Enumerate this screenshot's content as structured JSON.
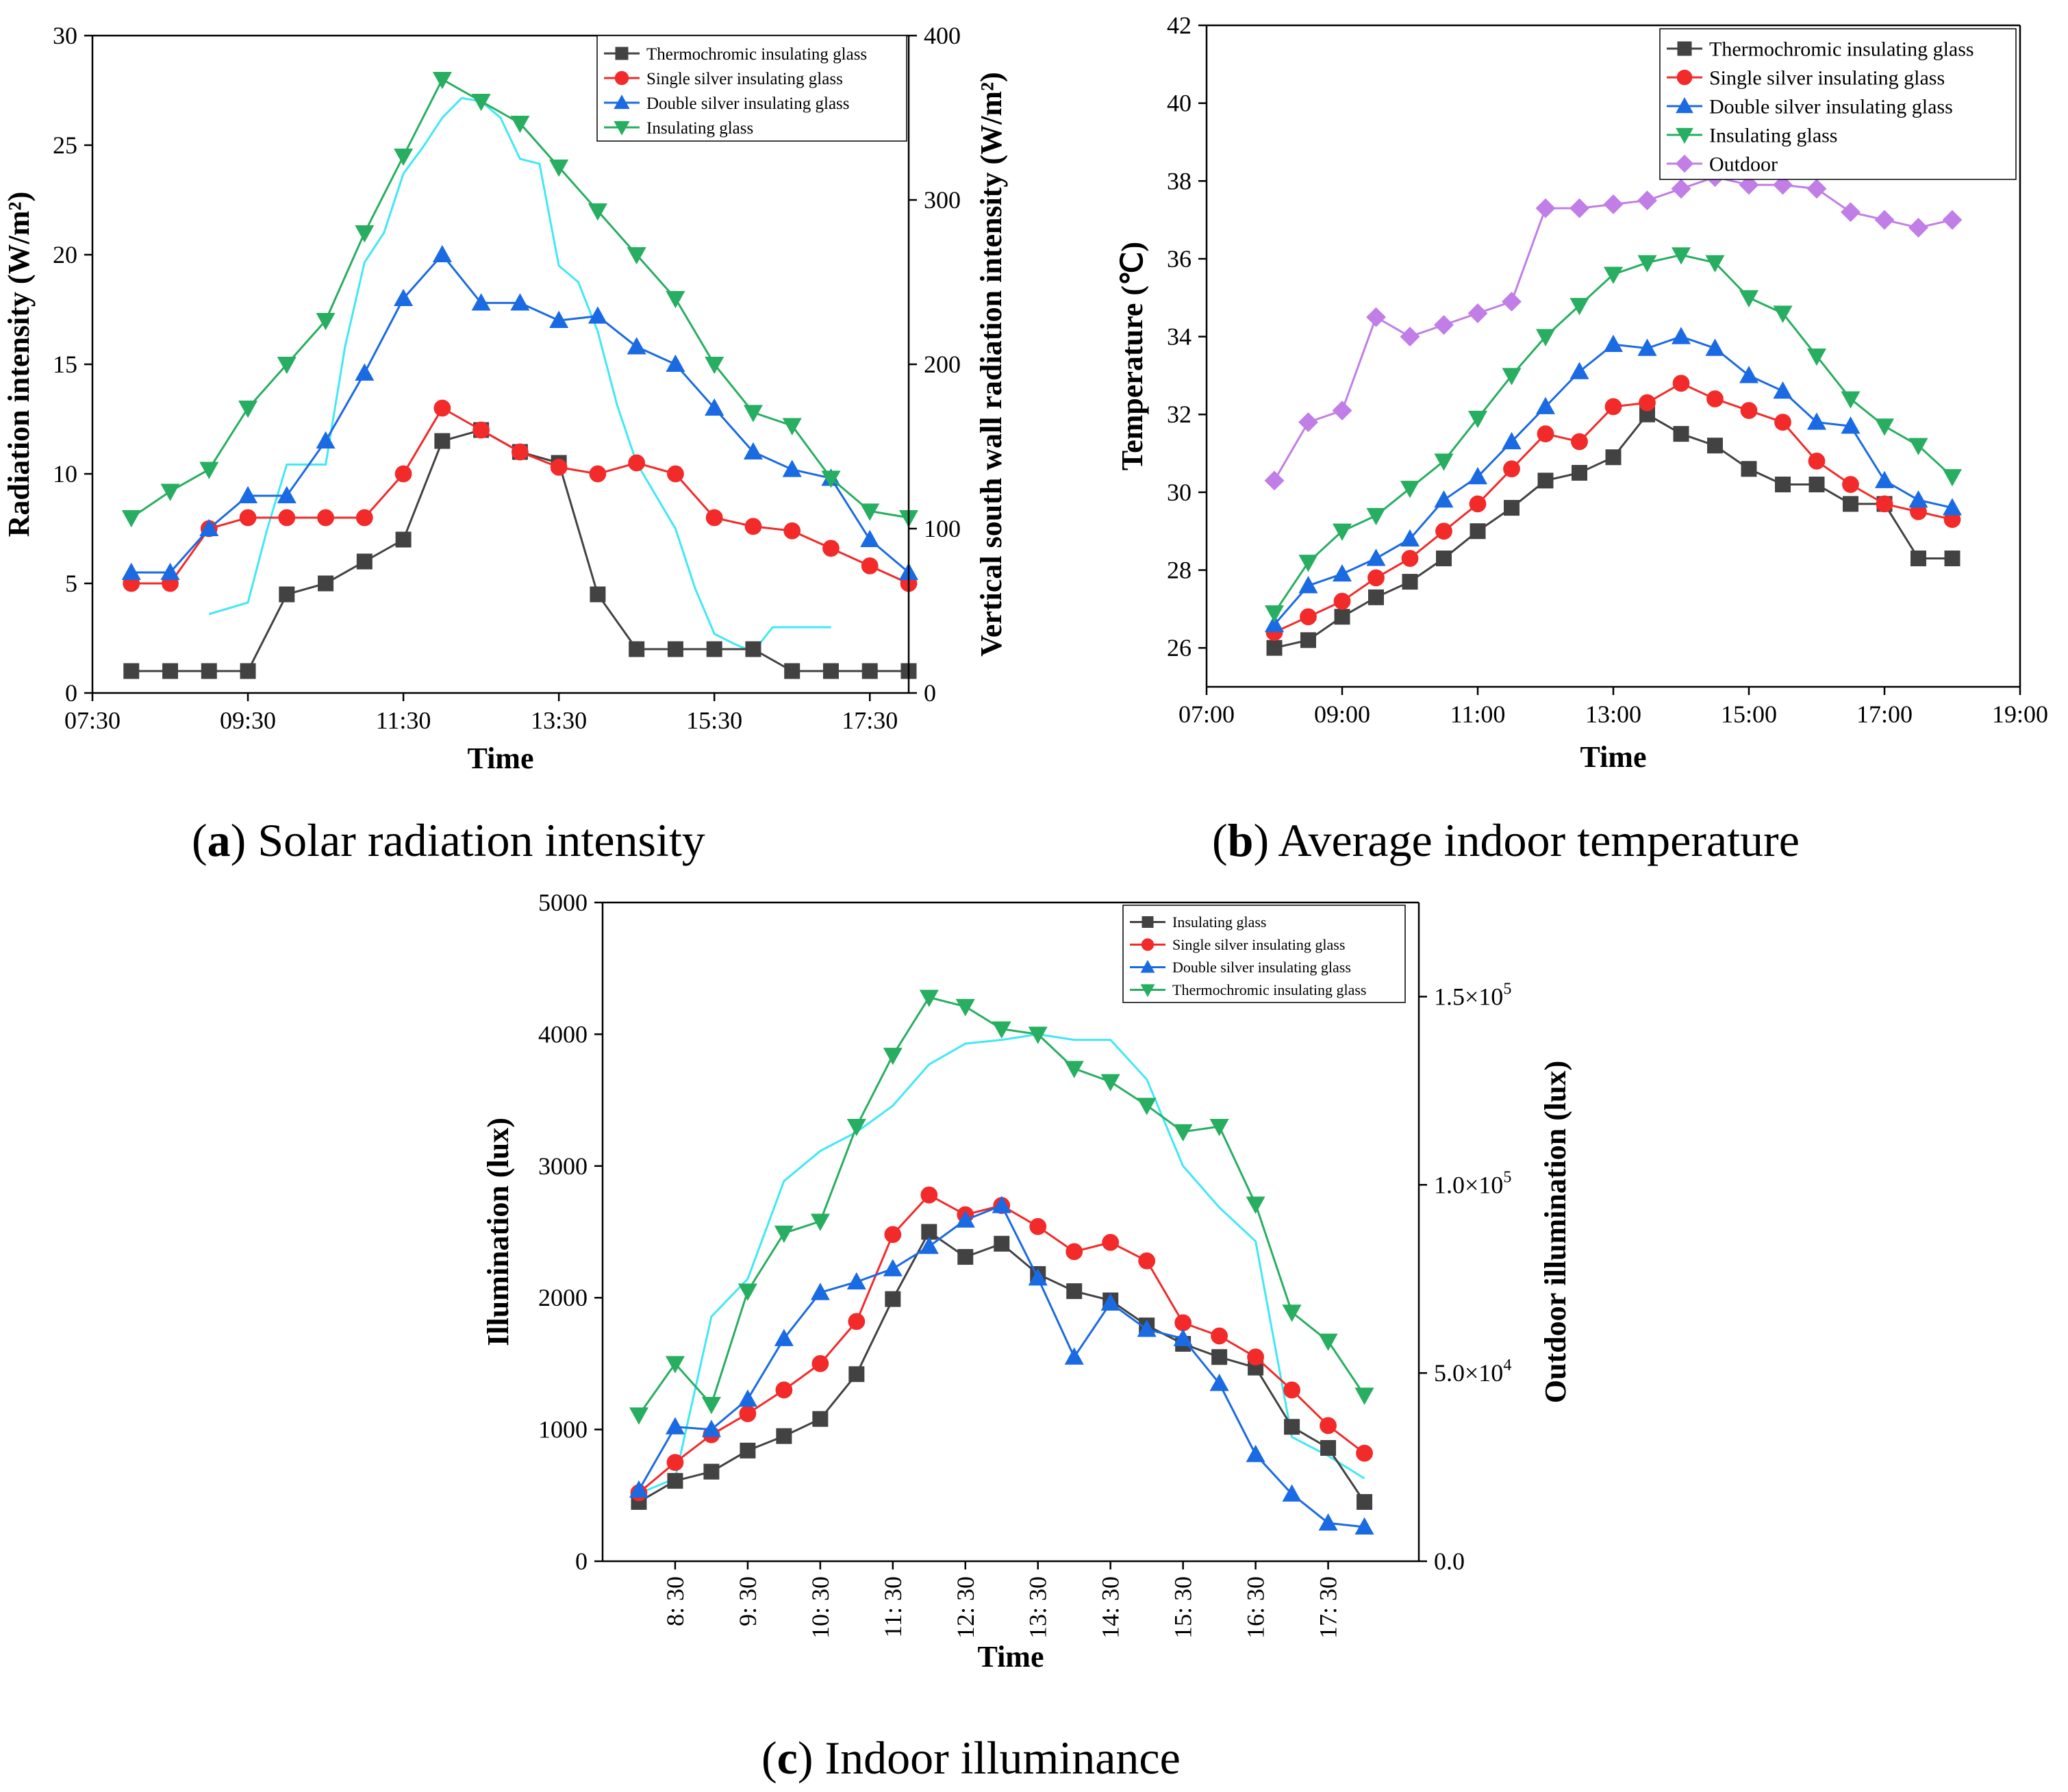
{
  "figure_captions": {
    "a": {
      "label": "a",
      "text": " Solar radiation intensity"
    },
    "b": {
      "label": "b",
      "text": " Average indoor temperature"
    },
    "c": {
      "label": "c",
      "text": " Indoor illuminance"
    }
  },
  "colors": {
    "thermochromic": "#424242",
    "single_silver": "#f22a2a",
    "double_silver": "#1a6ae3",
    "insulating": "#27ae60",
    "outdoor_marker": "#c07ee6",
    "outdoor_line": "#40e8f5",
    "axis": "#000000"
  },
  "chart_data": [
    {
      "id": "a",
      "type": "line",
      "xlabel": "Time",
      "ylabel": "Radiation intensity (W/m²)",
      "ylabel_right": "Vertical south wall radiation intensity (W/m²)",
      "xlim": [
        7.5,
        18.0
      ],
      "ylim": [
        0,
        30
      ],
      "ylim_right": [
        0,
        400
      ],
      "x_ticks": [
        7.5,
        9.5,
        11.5,
        13.5,
        15.5,
        17.5
      ],
      "x_tick_labels": [
        "07:30",
        "09:30",
        "11:30",
        "13:30",
        "15:30",
        "17:30"
      ],
      "y_ticks": [
        0,
        5,
        10,
        15,
        20,
        25,
        30
      ],
      "y_tick_labels": [
        "0",
        "5",
        "10",
        "15",
        "20",
        "25",
        "30"
      ],
      "y_ticks_right": [
        0,
        100,
        200,
        300,
        400
      ],
      "y_tick_labels_right": [
        "0",
        "100",
        "200",
        "300",
        "400"
      ],
      "legend_position": "top-right",
      "x": [
        8.0,
        8.5,
        9.0,
        9.5,
        10.0,
        10.5,
        11.0,
        11.5,
        12.0,
        12.5,
        13.0,
        13.5,
        14.0,
        14.5,
        15.0,
        15.5,
        16.0,
        16.5,
        17.0,
        17.5,
        18.0
      ],
      "series": [
        {
          "name": "Thermochromic insulating glass",
          "marker": "square",
          "color_key": "thermochromic",
          "values": [
            1,
            1,
            1,
            1,
            4.5,
            5,
            6,
            7,
            11.5,
            12,
            11,
            10.5,
            4.5,
            2,
            2,
            2,
            2,
            1,
            1,
            1,
            1
          ]
        },
        {
          "name": "Single silver insulating glass",
          "marker": "circle",
          "color_key": "single_silver",
          "values": [
            5,
            5,
            7.5,
            8,
            8,
            8,
            8,
            10,
            13,
            12,
            11,
            10.3,
            10,
            10.5,
            10,
            8,
            7.6,
            7.4,
            6.6,
            5.8,
            5
          ]
        },
        {
          "name": "Double silver insulating glass",
          "marker": "triangle-up",
          "color_key": "double_silver",
          "values": [
            5.5,
            5.5,
            7.5,
            9,
            9,
            11.5,
            14.6,
            18,
            20,
            17.8,
            17.8,
            17,
            17.2,
            15.8,
            15,
            13,
            11,
            10.2,
            9.8,
            7,
            5.5
          ]
        },
        {
          "name": "Insulating glass",
          "marker": "triangle-down",
          "color_key": "insulating",
          "values": [
            8,
            9.2,
            10.2,
            13,
            15,
            17,
            21,
            24.5,
            28,
            27,
            26,
            24,
            22,
            20,
            18,
            15,
            12.8,
            12.2,
            9.8,
            8.3,
            8
          ]
        }
      ],
      "secondary_series": {
        "name": "Vertical south wall radiation intensity",
        "axis": "right",
        "color_key": "outdoor_line",
        "x": [
          9.0,
          9.5,
          9.75,
          10.0,
          10.25,
          10.5,
          10.75,
          11.0,
          11.25,
          11.5,
          11.75,
          12.0,
          12.25,
          12.5,
          12.75,
          13.0,
          13.25,
          13.5,
          13.75,
          14.0,
          14.25,
          14.5,
          14.75,
          15.0,
          15.25,
          15.5,
          15.75,
          16.0,
          16.25,
          16.5,
          16.75,
          17.0
        ],
        "values": [
          48,
          55,
          100,
          139,
          139,
          139,
          211,
          262,
          280,
          316,
          332,
          350,
          362,
          360,
          350,
          325,
          322,
          260,
          250,
          220,
          175,
          140,
          120,
          100,
          64,
          36,
          30,
          25,
          40,
          40,
          40,
          40
        ]
      }
    },
    {
      "id": "b",
      "type": "line",
      "xlabel": "Time",
      "ylabel": "Temperature (℃)",
      "xlim": [
        7.0,
        19.0
      ],
      "ylim": [
        25,
        42
      ],
      "x_ticks": [
        7,
        9,
        11,
        13,
        15,
        17,
        19
      ],
      "x_tick_labels": [
        "07:00",
        "09:00",
        "11:00",
        "13:00",
        "15:00",
        "17:00",
        "19:00"
      ],
      "y_ticks": [
        26,
        28,
        30,
        32,
        34,
        36,
        38,
        40,
        42
      ],
      "y_tick_labels": [
        "26",
        "28",
        "30",
        "32",
        "34",
        "36",
        "38",
        "40",
        "42"
      ],
      "legend_position": "top-right",
      "x": [
        8.0,
        8.5,
        9.0,
        9.5,
        10.0,
        10.5,
        11.0,
        11.5,
        12.0,
        12.5,
        13.0,
        13.5,
        14.0,
        14.5,
        15.0,
        15.5,
        16.0,
        16.5,
        17.0,
        17.5,
        18.0
      ],
      "series": [
        {
          "name": "Thermochromic insulating glass",
          "marker": "square",
          "color_key": "thermochromic",
          "values": [
            26,
            26.2,
            26.8,
            27.3,
            27.7,
            28.3,
            29,
            29.6,
            30.3,
            30.5,
            30.9,
            32,
            31.5,
            31.2,
            30.6,
            30.2,
            30.2,
            29.7,
            29.7,
            28.3,
            28.3
          ]
        },
        {
          "name": "Single silver insulating glass",
          "marker": "circle",
          "color_key": "single_silver",
          "values": [
            26.4,
            26.8,
            27.2,
            27.8,
            28.3,
            29,
            29.7,
            30.6,
            31.5,
            31.3,
            32.2,
            32.3,
            32.8,
            32.4,
            32.1,
            31.8,
            30.8,
            30.2,
            29.7,
            29.5,
            29.3
          ]
        },
        {
          "name": "Double silver insulating glass",
          "marker": "triangle-up",
          "color_key": "double_silver",
          "values": [
            26.6,
            27.6,
            27.9,
            28.3,
            28.8,
            29.8,
            30.4,
            31.3,
            32.2,
            33.1,
            33.8,
            33.7,
            34,
            33.7,
            33,
            32.6,
            31.8,
            31.7,
            30.3,
            29.8,
            29.6
          ]
        },
        {
          "name": "Insulating glass",
          "marker": "triangle-down",
          "color_key": "insulating",
          "values": [
            26.9,
            28.2,
            29,
            29.4,
            30.1,
            30.8,
            31.9,
            33,
            34,
            34.8,
            35.6,
            35.9,
            36.1,
            35.9,
            35,
            34.6,
            33.5,
            32.4,
            31.7,
            31.2,
            30.4
          ]
        },
        {
          "name": "Outdoor",
          "marker": "diamond",
          "color_key": "outdoor_marker",
          "values": [
            30.3,
            31.8,
            32.1,
            34.5,
            34,
            34.3,
            34.6,
            34.9,
            37.3,
            37.3,
            37.4,
            37.5,
            37.8,
            38.1,
            37.9,
            37.9,
            37.8,
            37.2,
            37,
            36.8,
            37
          ]
        }
      ]
    },
    {
      "id": "c",
      "type": "line",
      "xlabel": "Time",
      "ylabel": "Illumination (lux)",
      "ylabel_right": "Outdoor illumination (lux)",
      "xlim": [
        7.5,
        18.75
      ],
      "ylim": [
        0,
        5000
      ],
      "ylim_right": [
        0,
        175000
      ],
      "x_ticks": [
        8.5,
        9.5,
        10.5,
        11.5,
        12.5,
        13.5,
        14.5,
        15.5,
        16.5,
        17.5
      ],
      "x_tick_labels": [
        "8: 30",
        "9: 30",
        "10: 30",
        "11: 30",
        "12: 30",
        "13: 30",
        "14: 30",
        "15: 30",
        "16: 30",
        "17: 30"
      ],
      "y_ticks": [
        0,
        1000,
        2000,
        3000,
        4000,
        5000
      ],
      "y_tick_labels": [
        "0",
        "1000",
        "2000",
        "3000",
        "4000",
        "5000"
      ],
      "y_ticks_right": [
        0,
        50000,
        100000,
        150000
      ],
      "y_tick_labels_right": [
        "0.0",
        "5.0×10",
        "1.0×10",
        "1.5×10"
      ],
      "y_tick_exponents_right": [
        "",
        "4",
        "5",
        "5"
      ],
      "legend_position": "top-right",
      "x": [
        8.0,
        8.5,
        9.0,
        9.5,
        10.0,
        10.5,
        11.0,
        11.5,
        12.0,
        12.5,
        13.0,
        13.5,
        14.0,
        14.5,
        15.0,
        15.5,
        16.0,
        16.5,
        17.0,
        17.5,
        18.0
      ],
      "series": [
        {
          "name": "Insulating glass",
          "marker": "square",
          "color_key": "thermochromic",
          "values": [
            450,
            610,
            680,
            840,
            950,
            1080,
            1420,
            1990,
            2500,
            2310,
            2410,
            2180,
            2050,
            1980,
            1790,
            1650,
            1550,
            1470,
            1020,
            860,
            450
          ]
        },
        {
          "name": "Single silver insulating glass",
          "marker": "circle",
          "color_key": "single_silver",
          "values": [
            520,
            750,
            960,
            1120,
            1300,
            1500,
            1820,
            2480,
            2780,
            2630,
            2700,
            2540,
            2350,
            2420,
            2280,
            1810,
            1710,
            1550,
            1300,
            1030,
            820
          ]
        },
        {
          "name": "Double silver insulating glass",
          "marker": "triangle-up",
          "color_key": "double_silver",
          "values": [
            540,
            1020,
            1000,
            1230,
            1690,
            2040,
            2120,
            2220,
            2390,
            2590,
            2700,
            2150,
            1550,
            1960,
            1760,
            1690,
            1350,
            810,
            510,
            290,
            260
          ]
        },
        {
          "name": "Thermochromic insulating glass",
          "marker": "triangle-down",
          "color_key": "insulating",
          "values": [
            1110,
            1500,
            1190,
            2050,
            2490,
            2580,
            3300,
            3840,
            4280,
            4210,
            4040,
            4000,
            3740,
            3640,
            3460,
            3260,
            3300,
            2710,
            1890,
            1670,
            1260
          ]
        }
      ],
      "secondary_series": {
        "name": "Outdoor illumination",
        "axis": "right",
        "color_key": "outdoor_line",
        "x": [
          8.0,
          8.5,
          9.0,
          9.5,
          10.0,
          10.5,
          11.0,
          11.5,
          12.0,
          12.5,
          13.0,
          13.5,
          14.0,
          14.5,
          15.0,
          15.5,
          16.0,
          16.5,
          17.0,
          17.5,
          18.0
        ],
        "values": [
          18000,
          22000,
          65000,
          75000,
          101000,
          109000,
          114000,
          121000,
          132000,
          137500,
          138500,
          140000,
          138500,
          138500,
          128000,
          105000,
          94000,
          85000,
          33000,
          28000,
          22000
        ]
      }
    }
  ]
}
